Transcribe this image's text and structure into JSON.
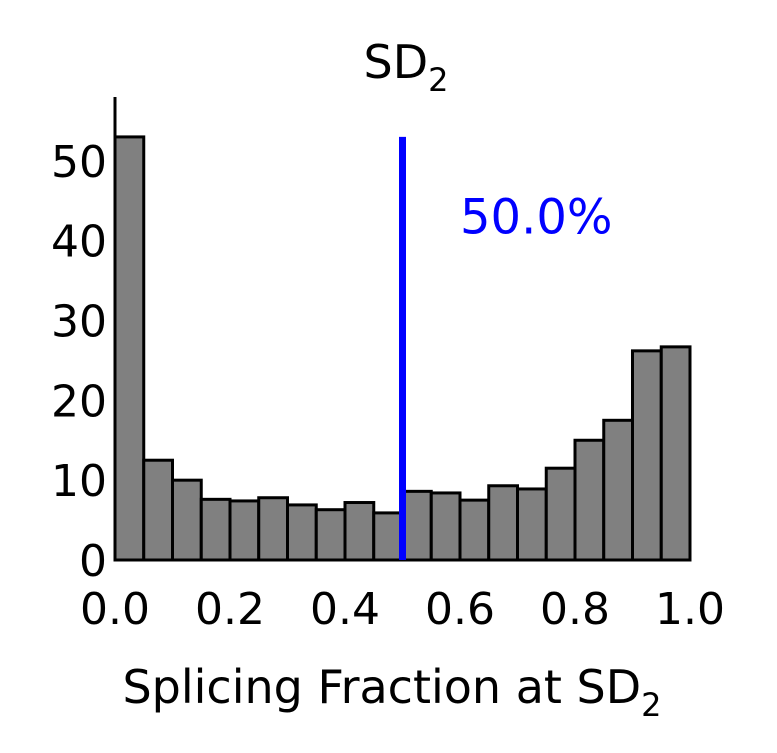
{
  "chart_data": {
    "type": "bar",
    "title": "SD",
    "title_subscript": "2",
    "xlabel": "Splicing Fraction at SD",
    "xlabel_subscript": "2",
    "ylabel": "",
    "xlim": [
      0.0,
      1.0
    ],
    "ylim": [
      0,
      58
    ],
    "xticks": [
      "0.0",
      "0.2",
      "0.4",
      "0.6",
      "0.8",
      "1.0"
    ],
    "yticks": [
      "0",
      "10",
      "20",
      "30",
      "40",
      "50"
    ],
    "bin_edges": [
      0.0,
      0.05,
      0.1,
      0.15,
      0.2,
      0.25,
      0.3,
      0.35,
      0.4,
      0.45,
      0.5,
      0.55,
      0.6,
      0.65,
      0.7,
      0.75,
      0.8,
      0.85,
      0.9,
      0.95,
      1.0
    ],
    "values": [
      53,
      12.5,
      10,
      7.6,
      7.4,
      7.8,
      6.9,
      6.3,
      7.2,
      5.9,
      8.6,
      8.4,
      7.5,
      9.3,
      8.9,
      11.5,
      15,
      17.5,
      26.2,
      26.7
    ],
    "bar_color": "#808080",
    "edge_color": "#000000",
    "vline": {
      "x": 0.5,
      "ymax": 53,
      "color": "#0000ff"
    },
    "annotation": {
      "text": "50.0%",
      "x": 0.6,
      "y": 43,
      "color": "#0000ff"
    },
    "grid": false
  }
}
